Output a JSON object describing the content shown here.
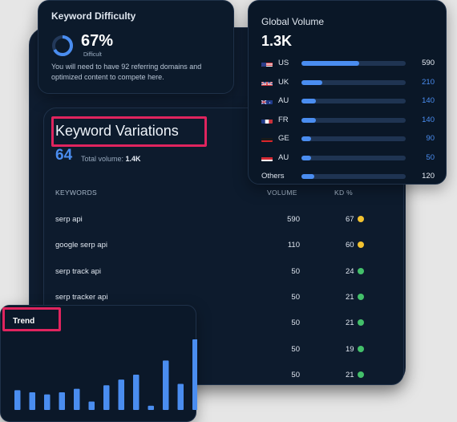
{
  "difficulty": {
    "title": "Keyword Difficulty",
    "percent": "67%",
    "percent_value": 0.67,
    "level": "Difficult",
    "description": "You will need to have 92 referring domains and optimized content to compete here.",
    "ring_color": "#4a8df0"
  },
  "global_volume": {
    "title": "Global Volume",
    "total": "1.3K",
    "rows": [
      {
        "flag": "us-flag-icon",
        "code": "US",
        "value": "590",
        "fraction": 0.55,
        "value_color": "#e8eef6"
      },
      {
        "flag": "uk-flag-icon",
        "code": "UK",
        "value": "210",
        "fraction": 0.2,
        "value_color": "#4a8df0"
      },
      {
        "flag": "au-flag-icon",
        "code": "AU",
        "value": "140",
        "fraction": 0.14,
        "value_color": "#4a8df0"
      },
      {
        "flag": "fr-flag-icon",
        "code": "FR",
        "value": "140",
        "fraction": 0.14,
        "value_color": "#4a8df0"
      },
      {
        "flag": "ge-flag-icon",
        "code": "GE",
        "value": "90",
        "fraction": 0.09,
        "value_color": "#4a8df0"
      },
      {
        "flag": "at-flag-icon",
        "code": "AU",
        "value": "50",
        "fraction": 0.06,
        "value_color": "#4a8df0"
      },
      {
        "flag": "",
        "code": "Others",
        "value": "120",
        "fraction": 0.12,
        "value_color": "#e8eef6"
      }
    ]
  },
  "variations": {
    "title": "Keyword Variations",
    "count": "64",
    "total_label": "Total volume:",
    "total_value": "1.4K",
    "headers": {
      "keywords": "KEYWORDS",
      "volume": "VOLUME",
      "kd": "KD %"
    },
    "rows": [
      {
        "keyword": "serp api",
        "volume": "590",
        "kd": "67",
        "status_color": "#f2c230"
      },
      {
        "keyword": "google serp api",
        "volume": "110",
        "kd": "60",
        "status_color": "#f2c230"
      },
      {
        "keyword": "serp track api",
        "volume": "50",
        "kd": "24",
        "status_color": "#43c06a"
      },
      {
        "keyword": "serp tracker api",
        "volume": "50",
        "kd": "21",
        "status_color": "#43c06a"
      },
      {
        "keyword": "",
        "volume": "50",
        "kd": "21",
        "status_color": "#43c06a"
      },
      {
        "keyword": "",
        "volume": "50",
        "kd": "19",
        "status_color": "#43c06a"
      },
      {
        "keyword": "",
        "volume": "50",
        "kd": "21",
        "status_color": "#43c06a"
      }
    ]
  },
  "trend": {
    "title": "Trend",
    "bar_color": "#4a8df0",
    "chart_data": {
      "type": "bar",
      "values": [
        28,
        25,
        22,
        25,
        30,
        12,
        35,
        43,
        50,
        6,
        70,
        37,
        100
      ],
      "ylim": [
        0,
        100
      ]
    }
  },
  "highlight_color": "#e0245e"
}
